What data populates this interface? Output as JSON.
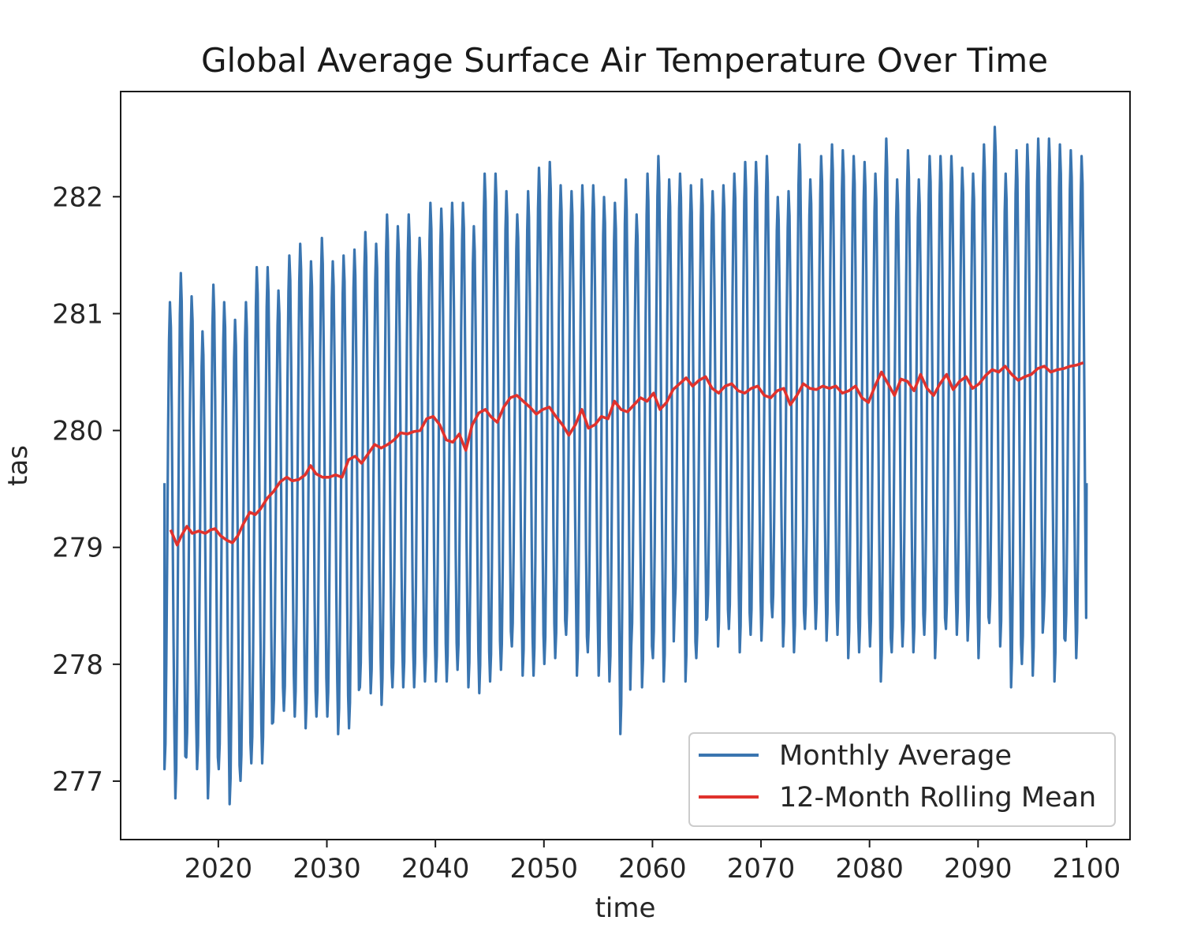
{
  "chart_data": {
    "type": "line",
    "title": "Global Average Surface Air Temperature Over Time",
    "xlabel": "time",
    "ylabel": "tas",
    "xlim": [
      2011,
      2104
    ],
    "ylim": [
      276.5,
      282.9
    ],
    "x_ticks": [
      2020,
      2030,
      2040,
      2050,
      2060,
      2070,
      2080,
      2090,
      2100
    ],
    "y_ticks": [
      277,
      278,
      279,
      280,
      281,
      282
    ],
    "grid": false,
    "legend_position": "bottom-right",
    "series": [
      {
        "name": "Monthly Average",
        "color": "#3a75b0",
        "kind": "monthly-seasonal",
        "start_year": 2015.04,
        "years": [
          2015,
          2016,
          2017,
          2018,
          2019,
          2020,
          2021,
          2022,
          2023,
          2024,
          2025,
          2026,
          2027,
          2028,
          2029,
          2030,
          2031,
          2032,
          2033,
          2034,
          2035,
          2036,
          2037,
          2038,
          2039,
          2040,
          2041,
          2042,
          2043,
          2044,
          2045,
          2046,
          2047,
          2048,
          2049,
          2050,
          2051,
          2052,
          2053,
          2054,
          2055,
          2056,
          2057,
          2058,
          2059,
          2060,
          2061,
          2062,
          2063,
          2064,
          2065,
          2066,
          2067,
          2068,
          2069,
          2070,
          2071,
          2072,
          2073,
          2074,
          2075,
          2076,
          2077,
          2078,
          2079,
          2080,
          2081,
          2082,
          2083,
          2084,
          2085,
          2086,
          2087,
          2088,
          2089,
          2090,
          2091,
          2092,
          2093,
          2094,
          2095,
          2096,
          2097,
          2098,
          2099
        ],
        "annual_max": [
          281.1,
          281.35,
          281.15,
          280.85,
          281.25,
          281.1,
          280.95,
          281.1,
          281.4,
          281.4,
          281.2,
          281.5,
          281.6,
          281.45,
          281.65,
          281.45,
          281.5,
          281.55,
          281.7,
          281.6,
          281.85,
          281.75,
          281.85,
          281.65,
          281.95,
          281.9,
          281.95,
          281.95,
          281.75,
          282.2,
          282.2,
          282.05,
          281.85,
          282.05,
          282.25,
          282.3,
          282.1,
          282.05,
          282.1,
          282.1,
          282.0,
          281.95,
          282.15,
          281.85,
          282.2,
          282.35,
          282.15,
          282.2,
          282.1,
          282.15,
          282.05,
          282.1,
          282.2,
          282.3,
          282.3,
          282.35,
          282.0,
          282.05,
          282.45,
          282.15,
          282.35,
          282.45,
          282.4,
          282.35,
          282.3,
          282.2,
          282.5,
          282.15,
          282.4,
          282.15,
          282.35,
          282.35,
          282.35,
          282.25,
          282.2,
          282.45,
          282.6,
          282.2,
          282.4,
          282.45,
          282.5,
          282.5,
          282.45,
          282.4,
          282.35
        ],
        "annual_min": [
          277.1,
          276.85,
          277.2,
          277.1,
          276.85,
          277.1,
          276.8,
          277.0,
          277.15,
          277.15,
          277.5,
          277.6,
          277.55,
          277.45,
          277.55,
          277.55,
          277.4,
          277.45,
          277.8,
          277.75,
          277.65,
          277.8,
          277.8,
          277.8,
          277.85,
          277.85,
          277.85,
          277.95,
          277.8,
          277.75,
          277.85,
          277.95,
          278.15,
          277.9,
          277.9,
          278.0,
          278.05,
          278.25,
          277.9,
          278.1,
          277.9,
          277.85,
          277.4,
          278.15,
          277.8,
          278.05,
          277.85,
          278.45,
          277.85,
          278.05,
          278.4,
          278.15,
          278.3,
          278.1,
          278.25,
          278.2,
          278.4,
          278.15,
          278.1,
          278.3,
          278.3,
          278.2,
          278.25,
          278.05,
          278.1,
          278.15,
          277.85,
          278.1,
          278.15,
          278.1,
          278.25,
          278.05,
          278.3,
          278.25,
          278.2,
          278.05,
          278.35,
          278.15,
          277.8,
          278.0,
          277.9,
          278.4,
          277.85,
          278.2,
          278.05
        ],
        "final_value": 279.55
      },
      {
        "name": "12-Month Rolling Mean",
        "color": "#e0322d",
        "x": [
          2015.6,
          2016.2,
          2016.6,
          2017.1,
          2017.6,
          2018.2,
          2018.8,
          2019.3,
          2019.7,
          2020.2,
          2020.8,
          2021.3,
          2021.8,
          2022.3,
          2022.9,
          2023.4,
          2023.9,
          2024.5,
          2025.1,
          2025.7,
          2026.3,
          2026.8,
          2027.4,
          2028.0,
          2028.5,
          2029.0,
          2029.6,
          2030.2,
          2030.8,
          2031.4,
          2032.0,
          2032.6,
          2033.2,
          2033.8,
          2034.4,
          2035.0,
          2035.6,
          2036.2,
          2036.8,
          2037.4,
          2038.0,
          2038.6,
          2039.2,
          2039.8,
          2040.4,
          2041.0,
          2041.6,
          2042.2,
          2042.8,
          2043.4,
          2044.0,
          2044.6,
          2045.1,
          2045.7,
          2046.3,
          2046.9,
          2047.5,
          2048.1,
          2048.7,
          2049.3,
          2049.9,
          2050.5,
          2051.1,
          2051.7,
          2052.3,
          2052.9,
          2053.5,
          2054.1,
          2054.7,
          2055.3,
          2055.9,
          2056.5,
          2057.1,
          2057.7,
          2058.3,
          2058.9,
          2059.5,
          2060.1,
          2060.7,
          2061.3,
          2061.9,
          2062.5,
          2063.1,
          2063.7,
          2064.3,
          2064.9,
          2065.5,
          2066.1,
          2066.7,
          2067.3,
          2067.9,
          2068.5,
          2069.1,
          2069.7,
          2070.3,
          2070.9,
          2071.5,
          2072.1,
          2072.7,
          2073.3,
          2073.9,
          2074.5,
          2075.1,
          2075.7,
          2076.3,
          2076.9,
          2077.5,
          2078.1,
          2078.7,
          2079.3,
          2079.9,
          2080.5,
          2081.1,
          2081.7,
          2082.3,
          2082.9,
          2083.5,
          2084.1,
          2084.7,
          2085.3,
          2085.9,
          2086.5,
          2087.1,
          2087.7,
          2088.3,
          2088.9,
          2089.5,
          2090.1,
          2090.7,
          2091.3,
          2091.9,
          2092.5,
          2093.1,
          2093.7,
          2094.3,
          2094.9,
          2095.5,
          2096.1,
          2096.7,
          2097.3,
          2097.9,
          2098.5,
          2099.1,
          2099.7
        ],
        "values": [
          279.15,
          279.02,
          279.1,
          279.18,
          279.12,
          279.14,
          279.12,
          279.15,
          279.16,
          279.1,
          279.06,
          279.04,
          279.1,
          279.2,
          279.3,
          279.28,
          279.33,
          279.42,
          279.48,
          279.56,
          279.6,
          279.57,
          279.58,
          279.62,
          279.7,
          279.63,
          279.6,
          279.6,
          279.62,
          279.6,
          279.75,
          279.78,
          279.72,
          279.8,
          279.88,
          279.85,
          279.88,
          279.92,
          279.98,
          279.97,
          279.99,
          280.0,
          280.1,
          280.12,
          280.05,
          279.92,
          279.9,
          279.97,
          279.83,
          280.05,
          280.15,
          280.18,
          280.12,
          280.07,
          280.2,
          280.28,
          280.3,
          280.25,
          280.2,
          280.14,
          280.18,
          280.2,
          280.12,
          280.05,
          279.96,
          280.05,
          280.18,
          280.02,
          280.05,
          280.12,
          280.1,
          280.25,
          280.18,
          280.16,
          280.22,
          280.28,
          280.25,
          280.32,
          280.18,
          280.24,
          280.35,
          280.4,
          280.45,
          280.38,
          280.43,
          280.46,
          280.36,
          280.32,
          280.38,
          280.4,
          280.34,
          280.32,
          280.36,
          280.38,
          280.3,
          280.28,
          280.34,
          280.36,
          280.22,
          280.3,
          280.4,
          280.36,
          280.35,
          280.38,
          280.36,
          280.38,
          280.32,
          280.34,
          280.38,
          280.28,
          280.24,
          280.38,
          280.5,
          280.4,
          280.3,
          280.44,
          280.42,
          280.34,
          280.48,
          280.36,
          280.3,
          280.4,
          280.48,
          280.35,
          280.42,
          280.46,
          280.36,
          280.4,
          280.47,
          280.52,
          280.5,
          280.55,
          280.48,
          280.43,
          280.46,
          280.48,
          280.53,
          280.55,
          280.5,
          280.52,
          280.53,
          280.55,
          280.56,
          280.58
        ]
      }
    ]
  }
}
